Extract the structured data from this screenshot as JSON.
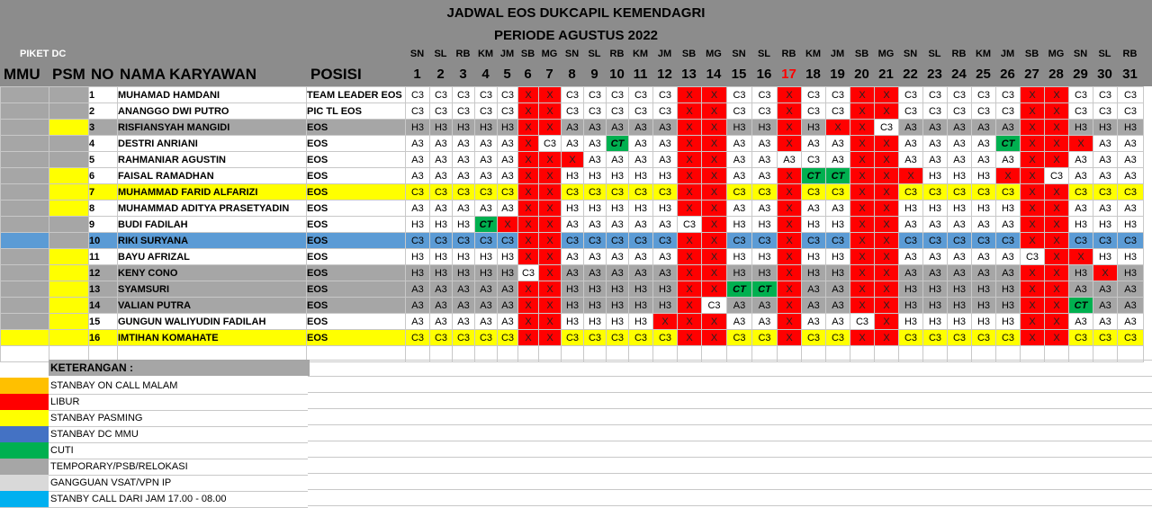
{
  "title": "JADWAL EOS DUKCAPIL KEMENDAGRI",
  "subtitle": "PERIODE AGUSTUS 2022",
  "piket_label": "PIKET DC",
  "columns": {
    "mmu": "MMU",
    "psm": "PSM",
    "no": "NO",
    "nama": "NAMA KARYAWAN",
    "posisi": "POSISI"
  },
  "colors": {
    "red": "#ff0000",
    "yellow": "#ffff00",
    "green": "#00b050",
    "gray": "#a6a6a6",
    "blue": "#5b9bd5",
    "lightgray": "#d9d9d9",
    "orange": "#ffc000",
    "cyan": "#00b0f0",
    "darkblue": "#4472c4",
    "holiday_text": "#ff0000"
  },
  "days": [
    {
      "d": "SN",
      "n": "1"
    },
    {
      "d": "SL",
      "n": "2"
    },
    {
      "d": "RB",
      "n": "3"
    },
    {
      "d": "KM",
      "n": "4"
    },
    {
      "d": "JM",
      "n": "5"
    },
    {
      "d": "SB",
      "n": "6"
    },
    {
      "d": "MG",
      "n": "7"
    },
    {
      "d": "SN",
      "n": "8"
    },
    {
      "d": "SL",
      "n": "9"
    },
    {
      "d": "RB",
      "n": "10"
    },
    {
      "d": "KM",
      "n": "11"
    },
    {
      "d": "JM",
      "n": "12"
    },
    {
      "d": "SB",
      "n": "13"
    },
    {
      "d": "MG",
      "n": "14"
    },
    {
      "d": "SN",
      "n": "15"
    },
    {
      "d": "SL",
      "n": "16"
    },
    {
      "d": "RB",
      "n": "17",
      "holiday": true
    },
    {
      "d": "KM",
      "n": "18"
    },
    {
      "d": "JM",
      "n": "19"
    },
    {
      "d": "SB",
      "n": "20"
    },
    {
      "d": "MG",
      "n": "21"
    },
    {
      "d": "SN",
      "n": "22"
    },
    {
      "d": "SL",
      "n": "23"
    },
    {
      "d": "RB",
      "n": "24"
    },
    {
      "d": "KM",
      "n": "25"
    },
    {
      "d": "JM",
      "n": "26"
    },
    {
      "d": "SB",
      "n": "27"
    },
    {
      "d": "MG",
      "n": "28"
    },
    {
      "d": "SN",
      "n": "29"
    },
    {
      "d": "SL",
      "n": "30"
    },
    {
      "d": "RB",
      "n": "31"
    }
  ],
  "rows": [
    {
      "no": "1",
      "name": "MUHAMAD HAMDANI",
      "pos": "TEAM LEADER EOS",
      "bg": "white",
      "mmu": "gray",
      "psm": "gray",
      "cells": [
        "C3",
        "C3",
        "C3",
        "C3",
        "C3",
        "X",
        "X",
        "C3",
        "C3",
        "C3",
        "C3",
        "C3",
        "X",
        "X",
        "C3",
        "C3",
        "X",
        "C3",
        "C3",
        "X",
        "X",
        "C3",
        "C3",
        "C3",
        "C3",
        "C3",
        "X",
        "X",
        "C3",
        "C3",
        "C3"
      ]
    },
    {
      "no": "2",
      "name": "ANANGGO DWI PUTRO",
      "pos": "PIC TL EOS",
      "bg": "white",
      "mmu": "gray",
      "psm": "gray",
      "cells": [
        "C3",
        "C3",
        "C3",
        "C3",
        "C3",
        "X",
        "X",
        "C3",
        "C3",
        "C3",
        "C3",
        "C3",
        "X",
        "X",
        "C3",
        "C3",
        "X",
        "C3",
        "C3",
        "X",
        "X",
        "C3",
        "C3",
        "C3",
        "C3",
        "C3",
        "X",
        "X",
        "C3",
        "C3",
        "C3"
      ]
    },
    {
      "no": "3",
      "name": "RISFIANSYAH MANGIDI",
      "pos": "EOS",
      "bg": "gray",
      "mmu": "gray",
      "psm": "yellow",
      "cells": [
        "H3",
        "H3",
        "H3",
        "H3",
        "H3",
        "X",
        "X",
        "A3",
        "A3",
        "A3",
        "A3",
        "A3",
        "X",
        "X",
        "H3",
        "H3",
        "X",
        "H3",
        "X",
        "X",
        "C3",
        "A3",
        "A3",
        "A3",
        "A3",
        "A3",
        "X",
        "X",
        "H3",
        "H3",
        "H3"
      ]
    },
    {
      "no": "4",
      "name": "DESTRI ANRIANI",
      "pos": "EOS",
      "bg": "white",
      "mmu": "gray",
      "psm": "gray",
      "cells": [
        "A3",
        "A3",
        "A3",
        "A3",
        "A3",
        "X",
        "C3",
        "A3",
        "A3",
        "CT",
        "A3",
        "A3",
        "X",
        "X",
        "A3",
        "A3",
        "X",
        "A3",
        "A3",
        "X",
        "X",
        "A3",
        "A3",
        "A3",
        "A3",
        "CT",
        "X",
        "X",
        "X",
        "A3",
        "A3"
      ]
    },
    {
      "no": "5",
      "name": "RAHMANIAR AGUSTIN",
      "pos": "EOS",
      "bg": "white",
      "mmu": "gray",
      "psm": "gray",
      "cells": [
        "A3",
        "A3",
        "A3",
        "A3",
        "A3",
        "X",
        "X",
        "X",
        "A3",
        "A3",
        "A3",
        "A3",
        "X",
        "X",
        "A3",
        "A3",
        "A3",
        "C3",
        "A3",
        "X",
        "X",
        "A3",
        "A3",
        "A3",
        "A3",
        "A3",
        "X",
        "X",
        "A3",
        "A3",
        "A3"
      ]
    },
    {
      "no": "6",
      "name": "FAISAL RAMADHAN",
      "pos": "EOS",
      "bg": "white",
      "mmu": "gray",
      "psm": "yellow",
      "cells": [
        "A3",
        "A3",
        "A3",
        "A3",
        "A3",
        "X",
        "X",
        "H3",
        "H3",
        "H3",
        "H3",
        "H3",
        "X",
        "X",
        "A3",
        "A3",
        "X",
        "CT",
        "CT",
        "X",
        "X",
        "X",
        "H3",
        "H3",
        "H3",
        "X",
        "X",
        "C3",
        "A3",
        "A3",
        "A3"
      ]
    },
    {
      "no": "7",
      "name": "MUHAMMAD FARID ALFARIZI",
      "pos": "EOS",
      "bg": "yellow",
      "mmu": "gray",
      "psm": "yellow",
      "cells": [
        "C3",
        "C3",
        "C3",
        "C3",
        "C3",
        "X",
        "X",
        "C3",
        "C3",
        "C3",
        "C3",
        "C3",
        "X",
        "X",
        "C3",
        "C3",
        "X",
        "C3",
        "C3",
        "X",
        "X",
        "C3",
        "C3",
        "C3",
        "C3",
        "C3",
        "X",
        "X",
        "C3",
        "C3",
        "C3"
      ]
    },
    {
      "no": "8",
      "name": "MUHAMMAD ADITYA PRASETYADIN",
      "pos": "EOS",
      "bg": "white",
      "mmu": "gray",
      "psm": "yellow",
      "cells": [
        "A3",
        "A3",
        "A3",
        "A3",
        "A3",
        "X",
        "X",
        "H3",
        "H3",
        "H3",
        "H3",
        "H3",
        "X",
        "X",
        "A3",
        "A3",
        "X",
        "A3",
        "A3",
        "X",
        "X",
        "H3",
        "H3",
        "H3",
        "H3",
        "H3",
        "X",
        "X",
        "A3",
        "A3",
        "A3"
      ]
    },
    {
      "no": "9",
      "name": "BUDI FADILAH",
      "pos": "EOS",
      "bg": "white",
      "mmu": "gray",
      "psm": "gray",
      "cells": [
        "H3",
        "H3",
        "H3",
        "CT",
        "X",
        "X",
        "X",
        "A3",
        "A3",
        "A3",
        "A3",
        "A3",
        "C3",
        "X",
        "H3",
        "H3",
        "X",
        "H3",
        "H3",
        "X",
        "X",
        "A3",
        "A3",
        "A3",
        "A3",
        "A3",
        "X",
        "X",
        "H3",
        "H3",
        "H3"
      ]
    },
    {
      "no": "10",
      "name": "RIKI SURYANA",
      "pos": "EOS",
      "bg": "blue",
      "mmu": "blue",
      "psm": "gray",
      "cells": [
        "C3",
        "C3",
        "C3",
        "C3",
        "C3",
        "X",
        "X",
        "C3",
        "C3",
        "C3",
        "C3",
        "C3",
        "X",
        "X",
        "C3",
        "C3",
        "X",
        "C3",
        "C3",
        "X",
        "X",
        "C3",
        "C3",
        "C3",
        "C3",
        "C3",
        "X",
        "X",
        "C3",
        "C3",
        "C3"
      ]
    },
    {
      "no": "11",
      "name": "BAYU AFRIZAL",
      "pos": "EOS",
      "bg": "white",
      "mmu": "gray",
      "psm": "yellow",
      "cells": [
        "H3",
        "H3",
        "H3",
        "H3",
        "H3",
        "X",
        "X",
        "A3",
        "A3",
        "A3",
        "A3",
        "A3",
        "X",
        "X",
        "H3",
        "H3",
        "X",
        "H3",
        "H3",
        "X",
        "X",
        "A3",
        "A3",
        "A3",
        "A3",
        "A3",
        "C3",
        "X",
        "X",
        "H3",
        "H3"
      ]
    },
    {
      "no": "12",
      "name": "KENY CONO",
      "pos": "EOS",
      "bg": "gray",
      "mmu": "gray",
      "psm": "yellow",
      "cells": [
        "H3",
        "H3",
        "H3",
        "H3",
        "H3",
        "C3",
        "X",
        "A3",
        "A3",
        "A3",
        "A3",
        "A3",
        "X",
        "X",
        "H3",
        "H3",
        "X",
        "H3",
        "H3",
        "X",
        "X",
        "A3",
        "A3",
        "A3",
        "A3",
        "A3",
        "X",
        "X",
        "H3",
        "X",
        "H3"
      ]
    },
    {
      "no": "13",
      "name": "SYAMSURI",
      "pos": "EOS",
      "bg": "gray",
      "mmu": "gray",
      "psm": "yellow",
      "cells": [
        "A3",
        "A3",
        "A3",
        "A3",
        "A3",
        "X",
        "X",
        "H3",
        "H3",
        "H3",
        "H3",
        "H3",
        "X",
        "X",
        "CT",
        "CT",
        "X",
        "A3",
        "A3",
        "X",
        "X",
        "H3",
        "H3",
        "H3",
        "H3",
        "H3",
        "X",
        "X",
        "A3",
        "A3",
        "A3"
      ]
    },
    {
      "no": "14",
      "name": "VALIAN PUTRA",
      "pos": "EOS",
      "bg": "gray",
      "mmu": "gray",
      "psm": "yellow",
      "cells": [
        "A3",
        "A3",
        "A3",
        "A3",
        "A3",
        "X",
        "X",
        "H3",
        "H3",
        "H3",
        "H3",
        "H3",
        "X",
        "C3",
        "A3",
        "A3",
        "X",
        "A3",
        "A3",
        "X",
        "X",
        "H3",
        "H3",
        "H3",
        "H3",
        "H3",
        "X",
        "X",
        "CT",
        "A3",
        "A3"
      ]
    },
    {
      "no": "15",
      "name": "GUNGUN WALIYUDIN FADILAH",
      "pos": "EOS",
      "bg": "white",
      "mmu": "gray",
      "psm": "yellow",
      "cells": [
        "A3",
        "A3",
        "A3",
        "A3",
        "A3",
        "X",
        "X",
        "H3",
        "H3",
        "H3",
        "H3",
        "X",
        "X",
        "X",
        "A3",
        "A3",
        "X",
        "A3",
        "A3",
        "C3",
        "X",
        "H3",
        "H3",
        "H3",
        "H3",
        "H3",
        "X",
        "X",
        "A3",
        "A3",
        "A3"
      ]
    },
    {
      "no": "16",
      "name": "IMTIHAN KOMAHATE",
      "pos": "EOS",
      "bg": "yellow",
      "mmu": "yellow",
      "psm": "yellow",
      "cells": [
        "C3",
        "C3",
        "C3",
        "C3",
        "C3",
        "X",
        "X",
        "C3",
        "C3",
        "C3",
        "C3",
        "C3",
        "X",
        "X",
        "C3",
        "C3",
        "X",
        "C3",
        "C3",
        "X",
        "X",
        "C3",
        "C3",
        "C3",
        "C3",
        "C3",
        "X",
        "X",
        "C3",
        "C3",
        "C3"
      ]
    }
  ],
  "legend": {
    "title": "KETERANGAN :",
    "items": [
      {
        "label": "STANBAY ON CALL MALAM",
        "color": "orange"
      },
      {
        "label": "LIBUR",
        "color": "red"
      },
      {
        "label": "STANBAY PASMING",
        "color": "yellow"
      },
      {
        "label": "STANBAY DC MMU",
        "color": "darkblue"
      },
      {
        "label": "CUTI",
        "color": "green"
      },
      {
        "label": "TEMPORARY/PSB/RELOKASI",
        "color": "gray"
      },
      {
        "label": "GANGGUAN VSAT/VPN IP",
        "color": "lightgray"
      },
      {
        "label": "STANBY CALL DARI JAM 17.00 - 08.00",
        "color": "cyan"
      }
    ]
  }
}
